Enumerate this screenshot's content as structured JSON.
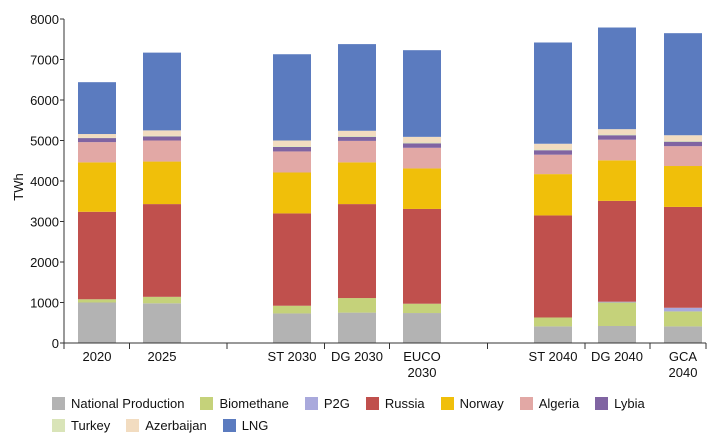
{
  "chart_data": {
    "type": "bar",
    "stacked": true,
    "title": "",
    "ylabel": "TWh",
    "xlabel": "",
    "ylim": [
      0,
      8000
    ],
    "yticks": [
      0,
      1000,
      2000,
      3000,
      4000,
      5000,
      6000,
      7000,
      8000
    ],
    "categories": [
      "2020",
      "2025",
      "ST 2030",
      "DG 2030",
      "EUCO 2030",
      "ST 2040",
      "DG 2040",
      "GCA 2040"
    ],
    "category_labels": [
      [
        "2020"
      ],
      [
        "2025"
      ],
      [
        "ST 2030"
      ],
      [
        "DG 2030"
      ],
      [
        "EUCO",
        "2030"
      ],
      [
        "ST 2040"
      ],
      [
        "DG 2040"
      ],
      [
        "GCA",
        "2040"
      ]
    ],
    "series": [
      {
        "name": "National Production",
        "color": "#b3b3b3",
        "values": [
          1000,
          980,
          730,
          750,
          740,
          410,
          420,
          410
        ]
      },
      {
        "name": "Biomethane",
        "color": "#c5d27a",
        "values": [
          80,
          160,
          190,
          360,
          230,
          220,
          580,
          370
        ]
      },
      {
        "name": "P2G",
        "color": "#a9a9dc",
        "values": [
          0,
          0,
          0,
          0,
          0,
          0,
          20,
          90
        ]
      },
      {
        "name": "Russia",
        "color": "#c0504d",
        "values": [
          2160,
          2290,
          2280,
          2320,
          2340,
          2520,
          2490,
          2490
        ]
      },
      {
        "name": "Norway",
        "color": "#f0bf0a",
        "values": [
          1220,
          1050,
          1010,
          1030,
          1000,
          1020,
          1000,
          1010
        ]
      },
      {
        "name": "Algeria",
        "color": "#e2a8a5",
        "values": [
          500,
          520,
          520,
          530,
          510,
          480,
          510,
          490
        ]
      },
      {
        "name": "Lybia",
        "color": "#8064a2",
        "values": [
          100,
          100,
          110,
          100,
          110,
          110,
          110,
          110
        ]
      },
      {
        "name": "Turkey",
        "color": "#d9e4b8",
        "values": [
          10,
          20,
          20,
          20,
          20,
          20,
          20,
          20
        ]
      },
      {
        "name": "Azerbaijan",
        "color": "#f2dcc0",
        "values": [
          90,
          130,
          140,
          130,
          140,
          140,
          130,
          140
        ]
      },
      {
        "name": "LNG",
        "color": "#5b7bbf",
        "values": [
          1280,
          1920,
          2130,
          2140,
          2140,
          2500,
          2510,
          2520
        ]
      }
    ],
    "legend_rows": [
      [
        "National Production",
        "Biomethane",
        "P2G",
        "Russia",
        "Norway",
        "Algeria",
        "Lybia"
      ],
      [
        "Turkey",
        "Azerbaijan",
        "LNG"
      ]
    ],
    "legend_position": "bottom",
    "grid": false
  }
}
